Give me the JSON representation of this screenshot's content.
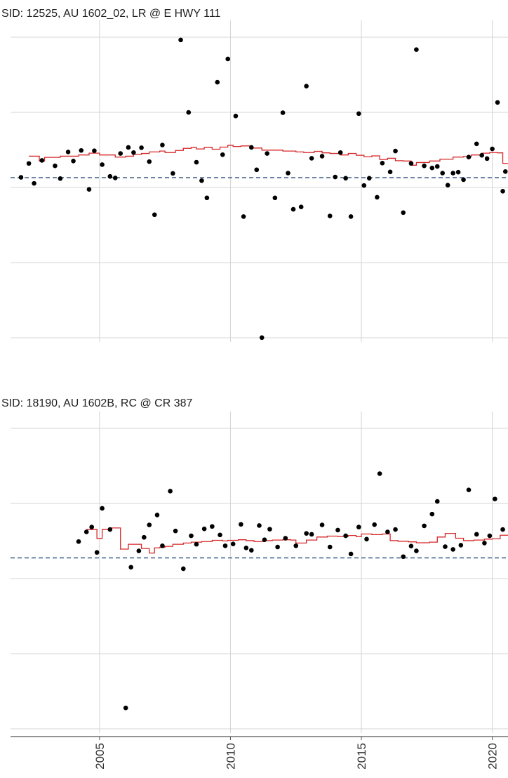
{
  "colors": {
    "point": "#000000",
    "trend": "#d62728",
    "reference": "#3b5f8a",
    "grid": "#d4d4d4",
    "axis": "#555555"
  },
  "chart_data": [
    {
      "type": "scatter",
      "title": "SID: 12525,  AU 1602_02,  LR @ E HWY 111",
      "xlabel": "",
      "ylabel": "",
      "xlim": [
        2001.6,
        2020.6
      ],
      "ylim": [
        0,
        100
      ],
      "grid": true,
      "legend": "none",
      "reference_line_y": 53.5,
      "points": [
        [
          2002.0,
          53.6
        ],
        [
          2002.3,
          58.2
        ],
        [
          2002.5,
          51.6
        ],
        [
          2002.8,
          59.2
        ],
        [
          2003.3,
          57.4
        ],
        [
          2003.5,
          53.2
        ],
        [
          2003.8,
          62.0
        ],
        [
          2004.0,
          59.0
        ],
        [
          2004.3,
          62.5
        ],
        [
          2004.6,
          49.6
        ],
        [
          2004.8,
          62.4
        ],
        [
          2005.1,
          57.8
        ],
        [
          2005.4,
          53.9
        ],
        [
          2005.6,
          53.4
        ],
        [
          2005.8,
          61.5
        ],
        [
          2006.1,
          63.5
        ],
        [
          2006.3,
          61.8
        ],
        [
          2006.6,
          63.4
        ],
        [
          2006.9,
          58.8
        ],
        [
          2007.1,
          41.2
        ],
        [
          2007.4,
          64.3
        ],
        [
          2007.8,
          54.9
        ],
        [
          2008.1,
          99.1
        ],
        [
          2008.4,
          75.1
        ],
        [
          2008.7,
          58.6
        ],
        [
          2008.9,
          52.5
        ],
        [
          2009.1,
          46.8
        ],
        [
          2009.5,
          85.1
        ],
        [
          2009.7,
          61.1
        ],
        [
          2009.9,
          92.8
        ],
        [
          2010.2,
          73.9
        ],
        [
          2010.5,
          40.6
        ],
        [
          2010.8,
          63.5
        ],
        [
          2011.0,
          56.1
        ],
        [
          2011.2,
          0.5
        ],
        [
          2011.4,
          61.5
        ],
        [
          2011.7,
          46.8
        ],
        [
          2012.0,
          75.0
        ],
        [
          2012.2,
          55.0
        ],
        [
          2012.4,
          43.0
        ],
        [
          2012.7,
          43.8
        ],
        [
          2012.9,
          83.8
        ],
        [
          2013.1,
          59.9
        ],
        [
          2013.5,
          60.6
        ],
        [
          2013.8,
          40.8
        ],
        [
          2014.0,
          53.7
        ],
        [
          2014.2,
          61.8
        ],
        [
          2014.4,
          53.3
        ],
        [
          2014.6,
          40.6
        ],
        [
          2014.9,
          74.7
        ],
        [
          2015.1,
          50.9
        ],
        [
          2015.3,
          53.3
        ],
        [
          2015.6,
          47.0
        ],
        [
          2015.8,
          58.3
        ],
        [
          2016.1,
          55.4
        ],
        [
          2016.3,
          62.3
        ],
        [
          2016.6,
          41.9
        ],
        [
          2016.9,
          58.2
        ],
        [
          2017.1,
          95.9
        ],
        [
          2017.4,
          57.4
        ],
        [
          2017.7,
          56.7
        ],
        [
          2017.9,
          57.2
        ],
        [
          2018.1,
          55.0
        ],
        [
          2018.3,
          51.0
        ],
        [
          2018.5,
          55.0
        ],
        [
          2018.7,
          55.3
        ],
        [
          2018.9,
          52.8
        ],
        [
          2019.1,
          60.3
        ],
        [
          2019.4,
          64.7
        ],
        [
          2019.6,
          60.9
        ],
        [
          2019.8,
          59.8
        ],
        [
          2020.0,
          63.0
        ],
        [
          2020.2,
          78.4
        ],
        [
          2020.4,
          49.0
        ],
        [
          2020.5,
          55.5
        ],
        [
          2020.6,
          57.3
        ],
        [
          2020.7,
          61.6
        ]
      ],
      "trend_steps": [
        [
          2002.3,
          60.6
        ],
        [
          2002.7,
          59.0
        ],
        [
          2002.9,
          60.2
        ],
        [
          2003.5,
          60.6
        ],
        [
          2004.2,
          61.0
        ],
        [
          2004.6,
          61.6
        ],
        [
          2005.0,
          61.0
        ],
        [
          2005.6,
          60.3
        ],
        [
          2006.0,
          60.6
        ],
        [
          2006.3,
          61.2
        ],
        [
          2006.6,
          61.5
        ],
        [
          2006.9,
          62.0
        ],
        [
          2007.3,
          62.3
        ],
        [
          2007.5,
          61.8
        ],
        [
          2007.9,
          62.5
        ],
        [
          2008.2,
          63.2
        ],
        [
          2008.5,
          63.5
        ],
        [
          2008.7,
          63.0
        ],
        [
          2009.0,
          63.5
        ],
        [
          2009.3,
          62.9
        ],
        [
          2009.6,
          63.6
        ],
        [
          2009.9,
          64.2
        ],
        [
          2010.1,
          63.8
        ],
        [
          2010.4,
          64.0
        ],
        [
          2010.8,
          63.3
        ],
        [
          2011.2,
          62.6
        ],
        [
          2011.6,
          62.6
        ],
        [
          2012.0,
          62.3
        ],
        [
          2012.5,
          62.0
        ],
        [
          2012.8,
          61.8
        ],
        [
          2013.2,
          62.2
        ],
        [
          2013.5,
          61.7
        ],
        [
          2013.8,
          61.5
        ],
        [
          2014.2,
          61.0
        ],
        [
          2014.5,
          61.5
        ],
        [
          2014.8,
          60.9
        ],
        [
          2015.1,
          60.4
        ],
        [
          2015.4,
          60.7
        ],
        [
          2015.7,
          59.5
        ],
        [
          2016.0,
          59.9
        ],
        [
          2016.3,
          59.1
        ],
        [
          2016.6,
          59.0
        ],
        [
          2016.9,
          57.6
        ],
        [
          2017.1,
          58.5
        ],
        [
          2017.6,
          59.0
        ],
        [
          2018.0,
          59.6
        ],
        [
          2018.5,
          60.3
        ],
        [
          2018.9,
          60.5
        ],
        [
          2019.2,
          61.0
        ],
        [
          2019.6,
          61.6
        ],
        [
          2019.9,
          61.8
        ],
        [
          2020.2,
          61.7
        ],
        [
          2020.4,
          58.2
        ],
        [
          2020.6,
          58.2
        ]
      ]
    },
    {
      "type": "scatter",
      "title": "SID: 18190,  AU 1602B,  RC @ CR 387",
      "xlabel": "",
      "ylabel": "",
      "xlim": [
        2001.6,
        2020.6
      ],
      "ylim": [
        0,
        100
      ],
      "grid": true,
      "legend": "none",
      "reference_line_y": 57.1,
      "x_ticks": [
        "2005",
        "2010",
        "2015",
        "2020"
      ],
      "points": [
        [
          2004.2,
          62.5
        ],
        [
          2004.5,
          65.7
        ],
        [
          2004.7,
          67.3
        ],
        [
          2004.9,
          58.9
        ],
        [
          2005.1,
          73.5
        ],
        [
          2005.4,
          66.5
        ],
        [
          2006.0,
          7.4
        ],
        [
          2006.2,
          54.0
        ],
        [
          2006.5,
          59.4
        ],
        [
          2006.7,
          63.9
        ],
        [
          2006.9,
          68.0
        ],
        [
          2007.2,
          71.3
        ],
        [
          2007.4,
          61.1
        ],
        [
          2007.7,
          79.2
        ],
        [
          2007.9,
          66.0
        ],
        [
          2008.2,
          53.5
        ],
        [
          2008.5,
          64.4
        ],
        [
          2008.7,
          61.6
        ],
        [
          2009.0,
          66.7
        ],
        [
          2009.3,
          67.5
        ],
        [
          2009.6,
          64.7
        ],
        [
          2009.8,
          61.1
        ],
        [
          2010.1,
          61.7
        ],
        [
          2010.4,
          68.2
        ],
        [
          2010.6,
          60.4
        ],
        [
          2010.8,
          59.6
        ],
        [
          2011.1,
          67.8
        ],
        [
          2011.3,
          63.1
        ],
        [
          2011.5,
          66.6
        ],
        [
          2011.8,
          60.7
        ],
        [
          2012.1,
          63.6
        ],
        [
          2012.5,
          61.1
        ],
        [
          2012.9,
          65.2
        ],
        [
          2013.1,
          64.9
        ],
        [
          2013.5,
          68.0
        ],
        [
          2013.8,
          60.7
        ],
        [
          2014.1,
          66.3
        ],
        [
          2014.4,
          64.4
        ],
        [
          2014.6,
          58.4
        ],
        [
          2014.9,
          67.3
        ],
        [
          2015.2,
          63.3
        ],
        [
          2015.5,
          68.1
        ],
        [
          2015.7,
          85.0
        ],
        [
          2016.0,
          65.7
        ],
        [
          2016.3,
          66.5
        ],
        [
          2016.6,
          57.5
        ],
        [
          2016.9,
          61.0
        ],
        [
          2017.1,
          59.4
        ],
        [
          2017.4,
          67.7
        ],
        [
          2017.7,
          71.6
        ],
        [
          2017.9,
          75.8
        ],
        [
          2018.2,
          60.8
        ],
        [
          2018.5,
          59.9
        ],
        [
          2018.8,
          61.3
        ],
        [
          2019.1,
          79.6
        ],
        [
          2019.4,
          64.9
        ],
        [
          2019.7,
          62.0
        ],
        [
          2019.9,
          64.4
        ],
        [
          2020.1,
          76.6
        ],
        [
          2020.4,
          66.5
        ],
        [
          2020.6,
          62.9
        ]
      ],
      "trend_steps": [
        [
          2004.5,
          66.5
        ],
        [
          2004.9,
          63.5
        ],
        [
          2005.1,
          66.5
        ],
        [
          2005.4,
          67.0
        ],
        [
          2005.8,
          60.0
        ],
        [
          2006.1,
          61.6
        ],
        [
          2006.6,
          60.2
        ],
        [
          2006.9,
          58.7
        ],
        [
          2007.1,
          60.4
        ],
        [
          2007.3,
          60.6
        ],
        [
          2007.5,
          60.9
        ],
        [
          2007.8,
          61.6
        ],
        [
          2008.2,
          62.0
        ],
        [
          2008.5,
          62.3
        ],
        [
          2008.9,
          62.5
        ],
        [
          2009.3,
          62.9
        ],
        [
          2009.7,
          62.7
        ],
        [
          2009.9,
          62.9
        ],
        [
          2010.3,
          63.1
        ],
        [
          2010.6,
          62.8
        ],
        [
          2010.9,
          62.5
        ],
        [
          2011.3,
          62.8
        ],
        [
          2011.6,
          63.0
        ],
        [
          2012.0,
          63.1
        ],
        [
          2012.3,
          63.0
        ],
        [
          2012.5,
          62.0
        ],
        [
          2012.9,
          63.0
        ],
        [
          2013.3,
          64.0
        ],
        [
          2013.7,
          64.3
        ],
        [
          2014.1,
          64.2
        ],
        [
          2014.5,
          64.5
        ],
        [
          2014.8,
          64.1
        ],
        [
          2015.0,
          65.0
        ],
        [
          2015.4,
          64.8
        ],
        [
          2015.8,
          65.0
        ],
        [
          2016.1,
          62.8
        ],
        [
          2016.4,
          62.6
        ],
        [
          2016.8,
          62.4
        ],
        [
          2017.1,
          62.1
        ],
        [
          2017.6,
          62.3
        ],
        [
          2017.9,
          64.0
        ],
        [
          2018.2,
          65.2
        ],
        [
          2018.6,
          63.6
        ],
        [
          2018.9,
          62.8
        ],
        [
          2019.3,
          63.0
        ],
        [
          2019.7,
          63.3
        ],
        [
          2020.0,
          63.4
        ],
        [
          2020.3,
          64.6
        ],
        [
          2020.6,
          64.6
        ]
      ]
    }
  ]
}
